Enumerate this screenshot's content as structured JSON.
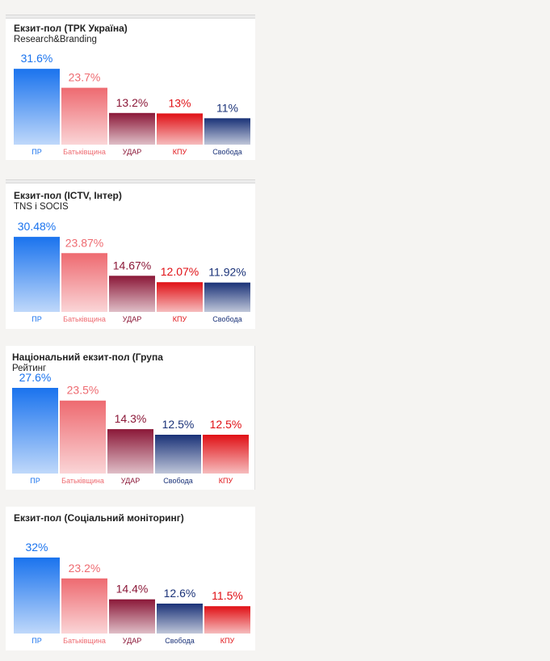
{
  "colors": {
    "ПР": "#1a73ee",
    "Батьківщина": "#ee6a70",
    "УДАР": "#8b1838",
    "КПУ": "#e01015",
    "Свобода": "#1a3278"
  },
  "panels": [
    {
      "title": "Екзит-пол (ТРК Україна)",
      "subtitle": "Research&Branding",
      "chart_data": {
        "type": "bar",
        "title": "Екзит-пол (ТРК Україна)",
        "subtitle": "Research&Branding",
        "categories": [
          "ПР",
          "Батьківщина",
          "УДАР",
          "КПУ",
          "Свобода"
        ],
        "values": [
          31.6,
          23.7,
          13.2,
          13,
          11
        ],
        "labels": [
          "31.6%",
          "23.7%",
          "13.2%",
          "13%",
          "11%"
        ],
        "ylim": [
          0,
          33
        ]
      }
    },
    {
      "title": "Екзит-пол (ICTV, Інтер)",
      "subtitle": "TNS і SOCIS",
      "chart_data": {
        "type": "bar",
        "title": "Екзит-пол (ICTV, Інтер)",
        "subtitle": "TNS і SOCIS",
        "categories": [
          "ПР",
          "Батьківщина",
          "УДАР",
          "КПУ",
          "Свобода"
        ],
        "values": [
          30.48,
          23.87,
          14.67,
          12.07,
          11.92
        ],
        "labels": [
          "30.48%",
          "23.87%",
          "14.67%",
          "12.07%",
          "11.92%"
        ],
        "ylim": [
          0,
          31.5
        ]
      }
    },
    {
      "title": "Національний екзит-пол (Група",
      "subtitle": "Рейтинг",
      "chart_data": {
        "type": "bar",
        "title": "Національний екзит-пол (Група",
        "subtitle": "Рейтинг",
        "categories": [
          "ПР",
          "Батьківщина",
          "УДАР",
          "Свобода",
          "КПУ"
        ],
        "values": [
          27.6,
          23.5,
          14.3,
          12.5,
          12.5
        ],
        "labels": [
          "27.6%",
          "23.5%",
          "14.3%",
          "12.5%",
          "12.5%"
        ],
        "ylim": [
          0,
          27.6
        ]
      }
    },
    {
      "title": "Екзит-пол (Соціальний моніторинг)",
      "subtitle": "",
      "chart_data": {
        "type": "bar",
        "title": "Екзит-пол (Соціальний моніторинг)",
        "subtitle": "",
        "categories": [
          "ПР",
          "Батьківщина",
          "УДАР",
          "Свобода",
          "КПУ"
        ],
        "values": [
          32,
          23.2,
          14.4,
          12.6,
          11.5
        ],
        "labels": [
          "32%",
          "23.2%",
          "14.4%",
          "12.6%",
          "11.5%"
        ],
        "ylim": [
          0,
          33
        ]
      }
    }
  ]
}
